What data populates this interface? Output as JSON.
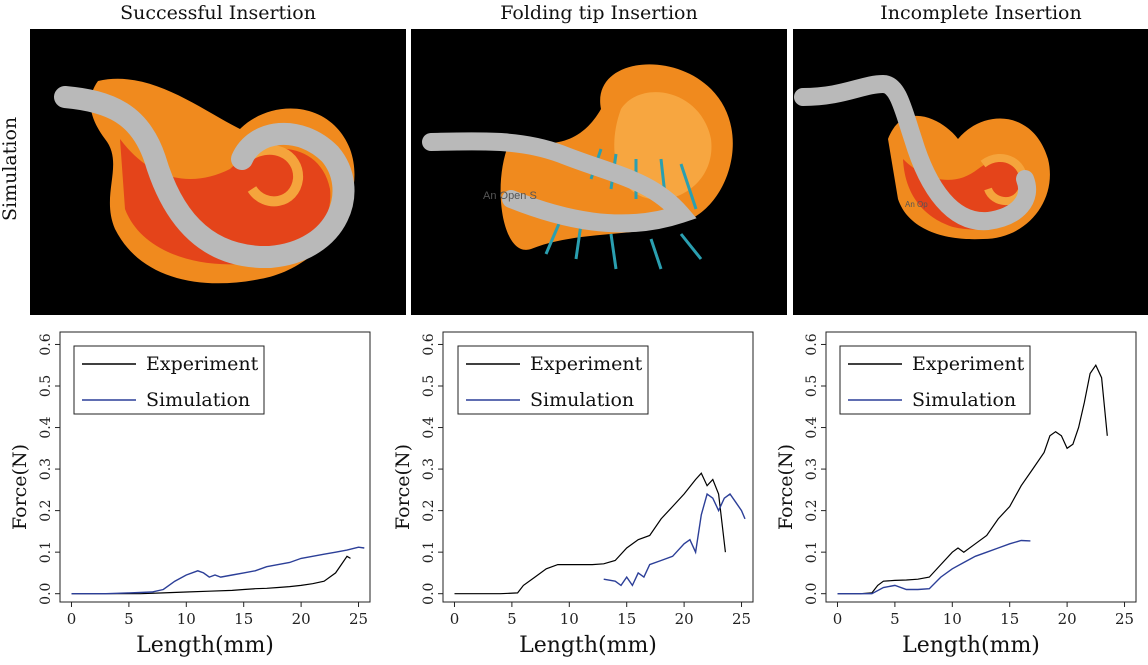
{
  "column_titles": [
    "Successful Insertion",
    "Folding tip Insertion",
    "Incomplete Insertion"
  ],
  "row_label": "Simulation",
  "simulation_panels": [
    {
      "name": "successful",
      "overlay_text": ""
    },
    {
      "name": "folding-tip",
      "overlay_text": "An Open S"
    },
    {
      "name": "incomplete",
      "overlay_text": "An Op"
    }
  ],
  "colors": {
    "experiment": "#000000",
    "simulation": "#2c3f98",
    "cochlea": "#f08a1e",
    "cochlea_inner": "#e4441a",
    "electrode": "#b9b9b9"
  },
  "chart_data": [
    {
      "type": "line",
      "title": "",
      "xlabel": "Length(mm)",
      "ylabel": "Force(N)",
      "xlim": [
        -1,
        26
      ],
      "ylim": [
        -0.02,
        0.63
      ],
      "xticks": [
        0,
        5,
        10,
        15,
        20,
        25
      ],
      "yticks": [
        0.0,
        0.1,
        0.2,
        0.3,
        0.4,
        0.5,
        0.6
      ],
      "legend_position": "top-left",
      "series": [
        {
          "name": "Experiment",
          "color": "#000000",
          "x": [
            0,
            2,
            4,
            6,
            8,
            10,
            12,
            14,
            15,
            16,
            17,
            18,
            19,
            20,
            21,
            22,
            23,
            23.5,
            24,
            24.3
          ],
          "y": [
            0,
            0,
            0,
            0,
            0.002,
            0.004,
            0.006,
            0.008,
            0.01,
            0.012,
            0.013,
            0.015,
            0.017,
            0.02,
            0.024,
            0.03,
            0.05,
            0.07,
            0.09,
            0.085
          ]
        },
        {
          "name": "Simulation",
          "color": "#2c3f98",
          "x": [
            0,
            3,
            5,
            7,
            8,
            9,
            10,
            11,
            11.5,
            12,
            12.5,
            13,
            14,
            15,
            16,
            17,
            18,
            19,
            20,
            21,
            22,
            23,
            24,
            25,
            25.5
          ],
          "y": [
            0,
            0,
            0.002,
            0.004,
            0.01,
            0.03,
            0.045,
            0.055,
            0.05,
            0.04,
            0.045,
            0.04,
            0.045,
            0.05,
            0.055,
            0.065,
            0.07,
            0.075,
            0.085,
            0.09,
            0.095,
            0.1,
            0.105,
            0.112,
            0.11
          ]
        }
      ]
    },
    {
      "type": "line",
      "title": "",
      "xlabel": "Length(mm)",
      "ylabel": "Force(N)",
      "xlim": [
        -1,
        26
      ],
      "ylim": [
        -0.02,
        0.63
      ],
      "xticks": [
        0,
        5,
        10,
        15,
        20,
        25
      ],
      "yticks": [
        0.0,
        0.1,
        0.2,
        0.3,
        0.4,
        0.5,
        0.6
      ],
      "legend_position": "top-left",
      "series": [
        {
          "name": "Experiment",
          "color": "#000000",
          "x": [
            0,
            2,
            4,
            5.5,
            6,
            7,
            8,
            9,
            10,
            11,
            12,
            13,
            14,
            15,
            16,
            17,
            18,
            19,
            20,
            21,
            21.5,
            22,
            22.5,
            23,
            23.3,
            23.6
          ],
          "y": [
            0,
            0,
            0,
            0.002,
            0.02,
            0.04,
            0.06,
            0.07,
            0.07,
            0.07,
            0.07,
            0.072,
            0.08,
            0.11,
            0.13,
            0.14,
            0.18,
            0.21,
            0.24,
            0.275,
            0.29,
            0.26,
            0.275,
            0.24,
            0.17,
            0.1
          ]
        },
        {
          "name": "Simulation",
          "color": "#2c3f98",
          "x": [
            13,
            14,
            14.5,
            15,
            15.5,
            16,
            16.5,
            17,
            18,
            19,
            20,
            20.5,
            21,
            21.5,
            22,
            22.5,
            23,
            23.5,
            24,
            24.5,
            25,
            25.3
          ],
          "y": [
            0.035,
            0.03,
            0.02,
            0.04,
            0.02,
            0.05,
            0.04,
            0.07,
            0.08,
            0.09,
            0.12,
            0.13,
            0.1,
            0.19,
            0.24,
            0.23,
            0.2,
            0.23,
            0.24,
            0.22,
            0.2,
            0.18
          ]
        }
      ]
    },
    {
      "type": "line",
      "title": "",
      "xlabel": "Length(mm)",
      "ylabel": "Force(N)",
      "xlim": [
        -1,
        26
      ],
      "ylim": [
        -0.02,
        0.63
      ],
      "xticks": [
        0,
        5,
        10,
        15,
        20,
        25
      ],
      "yticks": [
        0.0,
        0.1,
        0.2,
        0.3,
        0.4,
        0.5,
        0.6
      ],
      "legend_position": "top-left",
      "series": [
        {
          "name": "Experiment",
          "color": "#000000",
          "x": [
            0,
            2,
            3,
            3.5,
            4,
            5,
            6,
            7,
            8,
            9,
            10,
            10.5,
            11,
            12,
            13,
            14,
            15,
            16,
            17,
            18,
            18.5,
            19,
            19.5,
            20,
            20.5,
            21,
            21.5,
            22,
            22.5,
            23,
            23.5
          ],
          "y": [
            0,
            0,
            0.002,
            0.02,
            0.03,
            0.032,
            0.033,
            0.035,
            0.04,
            0.07,
            0.1,
            0.11,
            0.1,
            0.12,
            0.14,
            0.18,
            0.21,
            0.26,
            0.3,
            0.34,
            0.38,
            0.39,
            0.38,
            0.35,
            0.36,
            0.4,
            0.46,
            0.53,
            0.55,
            0.52,
            0.38
          ]
        },
        {
          "name": "Simulation",
          "color": "#2c3f98",
          "x": [
            0,
            3,
            4,
            5,
            6,
            7,
            8,
            9,
            10,
            11,
            12,
            13,
            14,
            15,
            16,
            16.8
          ],
          "y": [
            0,
            0,
            0.015,
            0.02,
            0.01,
            0.01,
            0.012,
            0.04,
            0.06,
            0.075,
            0.09,
            0.1,
            0.11,
            0.12,
            0.128,
            0.127
          ]
        }
      ]
    }
  ]
}
